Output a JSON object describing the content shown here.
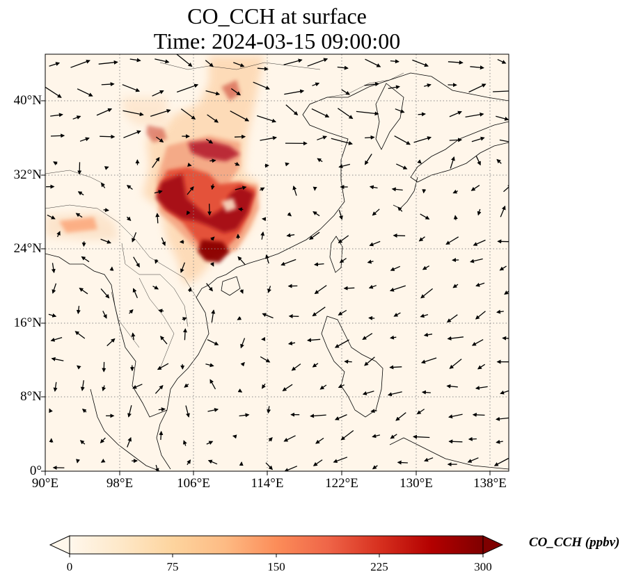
{
  "title": {
    "line1": "CO_CCH at surface",
    "line2": "Time: 2024-03-15 09:00:00"
  },
  "map": {
    "lon_range": [
      90,
      140
    ],
    "lat_range": [
      0,
      45
    ],
    "lon_ticks": [
      "90°E",
      "98°E",
      "106°E",
      "114°E",
      "122°E",
      "130°E",
      "138°E"
    ],
    "lat_ticks": [
      "0°",
      "8°N",
      "16°N",
      "24°N",
      "32°N",
      "40°N"
    ],
    "gridlines": true,
    "field_colormap": "OrRd"
  },
  "colorbar": {
    "label": "CO_CCH (ppbv)",
    "ticks": [
      "0",
      "75",
      "150",
      "225",
      "300"
    ],
    "range": [
      0,
      300
    ],
    "extend": "both",
    "colors": [
      "#fff7ec",
      "#fee8c8",
      "#fdd49e",
      "#fdbb84",
      "#fc8d59",
      "#ef6548",
      "#d7301f",
      "#b30000",
      "#7f0000"
    ]
  }
}
